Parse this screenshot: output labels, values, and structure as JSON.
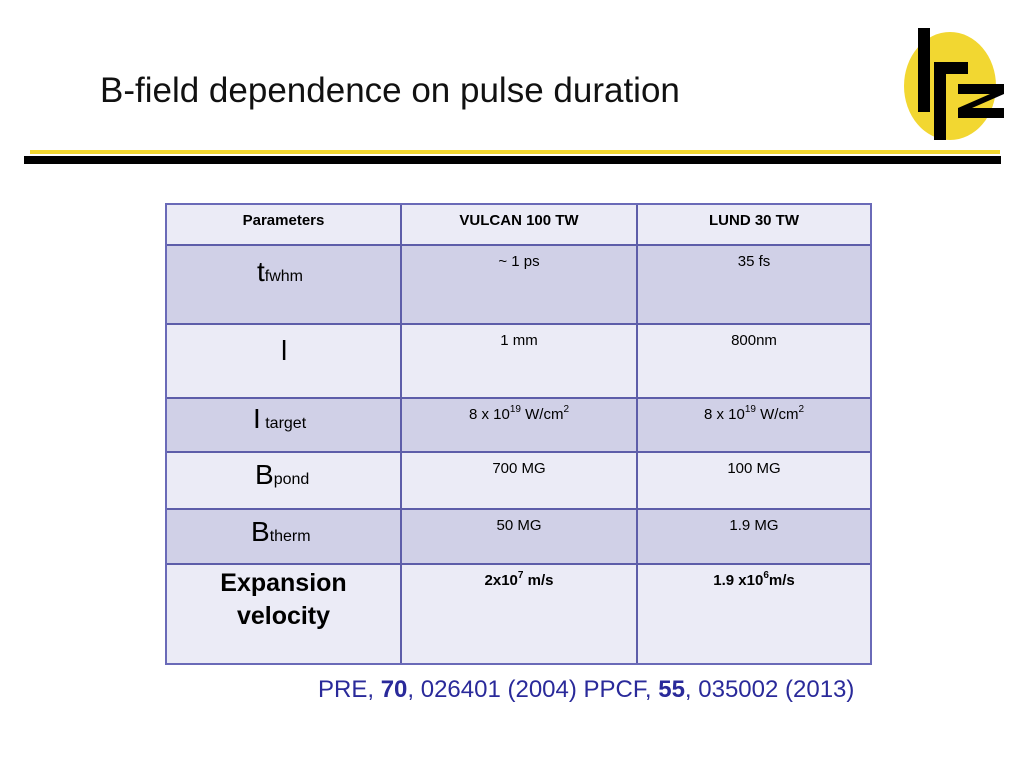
{
  "slide": {
    "title": "B-field dependence on pulse duration",
    "logo_text": "lrz"
  },
  "table": {
    "headers": [
      "Parameters",
      "VULCAN 100 TW",
      "LUND 30 TW"
    ],
    "rows": [
      {
        "param_main": "t",
        "param_sub": "fwhm",
        "vulcan": "~ 1 ps",
        "lund": "35 fs"
      },
      {
        "param_main": "l",
        "param_sub": "",
        "vulcan": "1 mm",
        "lund": "800nm"
      },
      {
        "param_main": "I",
        "param_sub": " target",
        "vulcan_base": "8 x 10",
        "vulcan_exp": "19",
        "vulcan_unit": " W/cm",
        "vulcan_unit_exp": "2",
        "lund_base": "8 x 10",
        "lund_exp": "19",
        "lund_unit": " W/cm",
        "lund_unit_exp": "2"
      },
      {
        "param_main": "B",
        "param_sub": "pond",
        "vulcan": "700 MG",
        "lund": "100 MG"
      },
      {
        "param_main": "B",
        "param_sub": "therm",
        "vulcan": "50 MG",
        "lund": "1.9 MG"
      },
      {
        "param_line1": "Expansion",
        "param_line2": "velocity",
        "vulcan_base": "2x10",
        "vulcan_exp": "7",
        "vulcan_unit": " m/s",
        "lund_base": "1.9 x10",
        "lund_exp": "6",
        "lund_unit": "m/s"
      }
    ]
  },
  "citation": {
    "pre_prefix": "PRE, ",
    "pre_volume": "70",
    "pre_suffix": ", 026401 (2004)  ",
    "ppcf_prefix": "PPCF, ",
    "ppcf_volume": "55",
    "ppcf_suffix": ", 035002 (2013)"
  },
  "colors": {
    "accent_yellow": "#f2d731",
    "table_border": "#6a6ab8",
    "row_light": "#ebebf6",
    "row_dark": "#d0d0e7",
    "citation_blue": "#2a2a9a"
  }
}
